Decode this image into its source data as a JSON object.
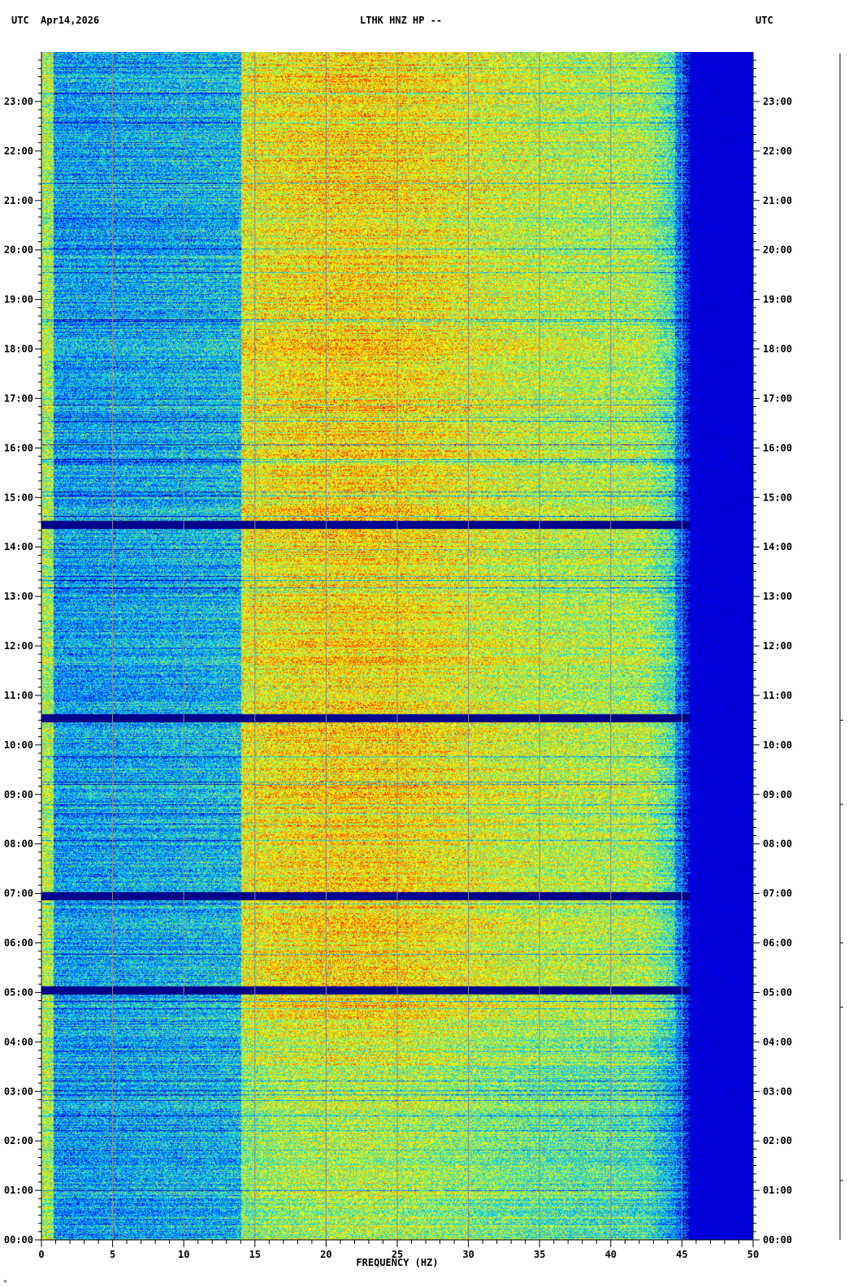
{
  "header": {
    "utc_left": "UTC",
    "date": "Apr14,2026",
    "station": "LTHK HNZ HP --",
    "utc_right": "UTC"
  },
  "colors": {
    "background": "#ffffff",
    "gridline": "#8c8c8c",
    "axis": "#000000",
    "colormap": [
      "#00008b",
      "#0000ff",
      "#0078ff",
      "#00c8ff",
      "#40e0a0",
      "#c8f040",
      "#ffff00",
      "#ff8c00",
      "#ff0000"
    ]
  },
  "chart_data": {
    "type": "heatmap",
    "xlabel": "FREQUENCY (HZ)",
    "xlim": [
      0,
      50
    ],
    "x_ticks": [
      "0",
      "5",
      "10",
      "15",
      "20",
      "25",
      "30",
      "35",
      "40",
      "45",
      "50"
    ],
    "ylim_hours": [
      0,
      24
    ],
    "y_ticks": [
      "00:00",
      "01:00",
      "02:00",
      "03:00",
      "04:00",
      "05:00",
      "06:00",
      "07:00",
      "08:00",
      "09:00",
      "10:00",
      "11:00",
      "12:00",
      "13:00",
      "14:00",
      "15:00",
      "16:00",
      "17:00",
      "18:00",
      "19:00",
      "20:00",
      "21:00",
      "22:00",
      "23:00"
    ],
    "grid": true,
    "dark_bands_hours": [
      5.05,
      10.55,
      6.95,
      14.45
    ],
    "high_energy_band_hz": [
      14,
      44
    ],
    "rolloff_hz": 44.5
  }
}
